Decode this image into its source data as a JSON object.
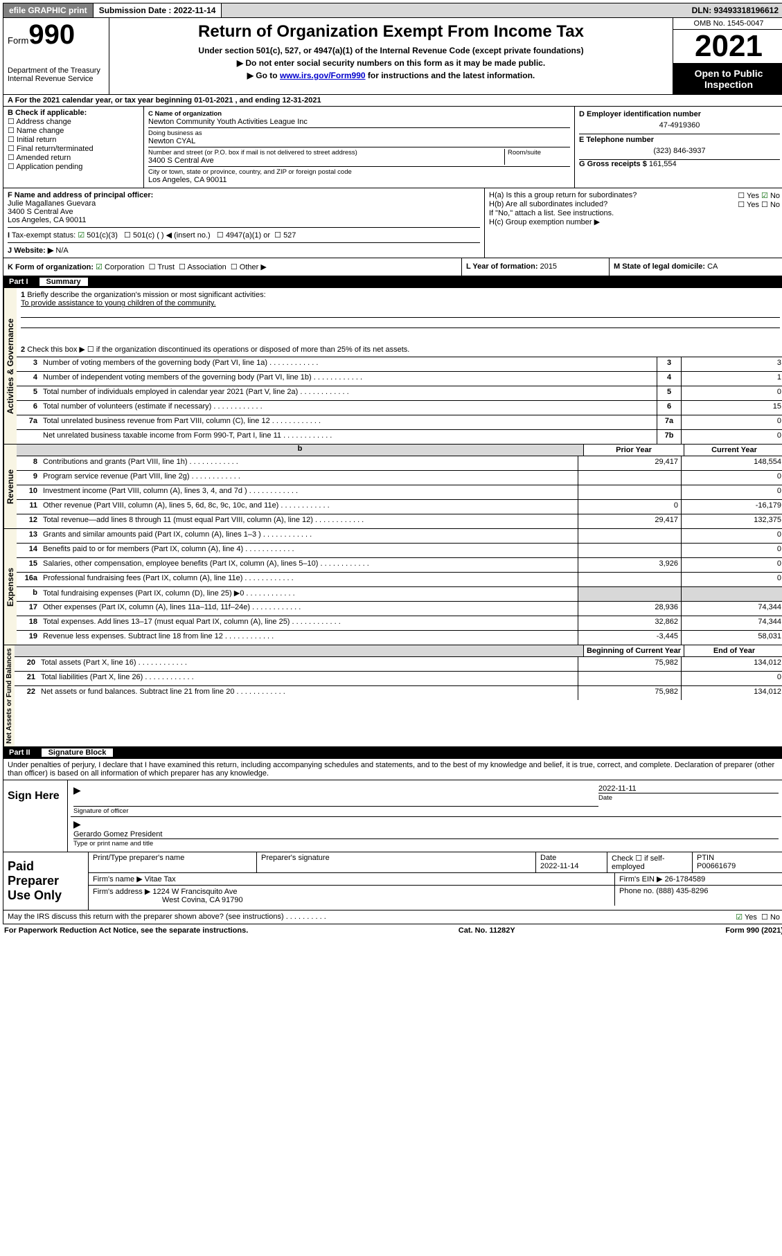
{
  "topbar": {
    "efile": "efile GRAPHIC print",
    "submission": "Submission Date : 2022-11-14",
    "dln": "DLN: 93493318196612"
  },
  "header": {
    "form_label": "Form",
    "form_number": "990",
    "dept": "Department of the Treasury",
    "irs": "Internal Revenue Service",
    "title": "Return of Organization Exempt From Income Tax",
    "subtitle": "Under section 501(c), 527, or 4947(a)(1) of the Internal Revenue Code (except private foundations)",
    "note1": "▶ Do not enter social security numbers on this form as it may be made public.",
    "note2_pre": "▶ Go to ",
    "note2_link": "www.irs.gov/Form990",
    "note2_post": " for instructions and the latest information.",
    "omb": "OMB No. 1545-0047",
    "year": "2021",
    "open": "Open to Public Inspection"
  },
  "rowA": "For the 2021 calendar year, or tax year beginning 01-01-2021   , and ending 12-31-2021",
  "colB": {
    "label": "B Check if applicable:",
    "items": [
      "Address change",
      "Name change",
      "Initial return",
      "Final return/terminated",
      "Amended return",
      "Application pending"
    ]
  },
  "colC": {
    "name_lbl": "C Name of organization",
    "name": "Newton Community Youth Activities League Inc",
    "dba_lbl": "Doing business as",
    "dba": "Newton CYAL",
    "addr_lbl": "Number and street (or P.O. box if mail is not delivered to street address)",
    "room_lbl": "Room/suite",
    "addr": "3400 S Central Ave",
    "city_lbl": "City or town, state or province, country, and ZIP or foreign postal code",
    "city": "Los Angeles, CA  90011"
  },
  "colD": {
    "ein_lbl": "D Employer identification number",
    "ein": "47-4919360",
    "tel_lbl": "E Telephone number",
    "tel": "(323) 846-3937",
    "gross_lbl": "G Gross receipts $",
    "gross": "161,554"
  },
  "rowF": {
    "f_lbl": "F Name and address of principal officer:",
    "f_name": "Julie Magallanes Guevara",
    "f_addr1": "3400 S Central Ave",
    "f_addr2": "Los Angeles, CA  90011",
    "i_lbl": "Tax-exempt status:",
    "i_501c3": "501(c)(3)",
    "i_501c": "501(c) (  ) ◀ (insert no.)",
    "i_4947": "4947(a)(1) or",
    "i_527": "527",
    "j_lbl": "Website: ▶",
    "j_val": "N/A",
    "ha_lbl": "H(a)  Is this a group return for subordinates?",
    "hb_lbl": "H(b)  Are all subordinates included?",
    "h_note": "If \"No,\" attach a list. See instructions.",
    "hc_lbl": "H(c)  Group exemption number ▶",
    "yes": "Yes",
    "no": "No"
  },
  "rowK": {
    "k_lbl": "K Form of organization:",
    "corp": "Corporation",
    "trust": "Trust",
    "assoc": "Association",
    "other": "Other ▶",
    "l_lbl": "L Year of formation:",
    "l_val": "2015",
    "m_lbl": "M State of legal domicile:",
    "m_val": "CA"
  },
  "part1": {
    "num": "Part I",
    "title": "Summary",
    "q1": "Briefly describe the organization's mission or most significant activities:",
    "q1a": "To provide assistance to young children of the community.",
    "q2": "Check this box ▶ ☐  if the organization discontinued its operations or disposed of more than 25% of its net assets.",
    "sideA": "Activities & Governance",
    "sideR": "Revenue",
    "sideE": "Expenses",
    "sideN": "Net Assets or Fund Balances",
    "prior": "Prior Year",
    "current": "Current Year",
    "begin": "Beginning of Current Year",
    "end": "End of Year",
    "lines_gov": [
      {
        "n": "3",
        "d": "Number of voting members of the governing body (Part VI, line 1a)",
        "b": "3",
        "v": "3"
      },
      {
        "n": "4",
        "d": "Number of independent voting members of the governing body (Part VI, line 1b)",
        "b": "4",
        "v": "1"
      },
      {
        "n": "5",
        "d": "Total number of individuals employed in calendar year 2021 (Part V, line 2a)",
        "b": "5",
        "v": "0"
      },
      {
        "n": "6",
        "d": "Total number of volunteers (estimate if necessary)",
        "b": "6",
        "v": "15"
      },
      {
        "n": "7a",
        "d": "Total unrelated business revenue from Part VIII, column (C), line 12",
        "b": "7a",
        "v": "0"
      },
      {
        "n": "",
        "d": "Net unrelated business taxable income from Form 990-T, Part I, line 11",
        "b": "7b",
        "v": "0"
      }
    ],
    "lines_rev": [
      {
        "n": "8",
        "d": "Contributions and grants (Part VIII, line 1h)",
        "p": "29,417",
        "c": "148,554"
      },
      {
        "n": "9",
        "d": "Program service revenue (Part VIII, line 2g)",
        "p": "",
        "c": "0"
      },
      {
        "n": "10",
        "d": "Investment income (Part VIII, column (A), lines 3, 4, and 7d )",
        "p": "",
        "c": "0"
      },
      {
        "n": "11",
        "d": "Other revenue (Part VIII, column (A), lines 5, 6d, 8c, 9c, 10c, and 11e)",
        "p": "0",
        "c": "-16,179"
      },
      {
        "n": "12",
        "d": "Total revenue—add lines 8 through 11 (must equal Part VIII, column (A), line 12)",
        "p": "29,417",
        "c": "132,375"
      }
    ],
    "lines_exp": [
      {
        "n": "13",
        "d": "Grants and similar amounts paid (Part IX, column (A), lines 1–3 )",
        "p": "",
        "c": "0"
      },
      {
        "n": "14",
        "d": "Benefits paid to or for members (Part IX, column (A), line 4)",
        "p": "",
        "c": "0"
      },
      {
        "n": "15",
        "d": "Salaries, other compensation, employee benefits (Part IX, column (A), lines 5–10)",
        "p": "3,926",
        "c": "0"
      },
      {
        "n": "16a",
        "d": "Professional fundraising fees (Part IX, column (A), line 11e)",
        "p": "",
        "c": "0"
      },
      {
        "n": "b",
        "d": "Total fundraising expenses (Part IX, column (D), line 25) ▶0",
        "p": "shade",
        "c": "shade"
      },
      {
        "n": "17",
        "d": "Other expenses (Part IX, column (A), lines 11a–11d, 11f–24e)",
        "p": "28,936",
        "c": "74,344"
      },
      {
        "n": "18",
        "d": "Total expenses. Add lines 13–17 (must equal Part IX, column (A), line 25)",
        "p": "32,862",
        "c": "74,344"
      },
      {
        "n": "19",
        "d": "Revenue less expenses. Subtract line 18 from line 12",
        "p": "-3,445",
        "c": "58,031"
      }
    ],
    "lines_net": [
      {
        "n": "20",
        "d": "Total assets (Part X, line 16)",
        "p": "75,982",
        "c": "134,012"
      },
      {
        "n": "21",
        "d": "Total liabilities (Part X, line 26)",
        "p": "",
        "c": "0"
      },
      {
        "n": "22",
        "d": "Net assets or fund balances. Subtract line 21 from line 20",
        "p": "75,982",
        "c": "134,012"
      }
    ]
  },
  "part2": {
    "num": "Part II",
    "title": "Signature Block",
    "penalty": "Under penalties of perjury, I declare that I have examined this return, including accompanying schedules and statements, and to the best of my knowledge and belief, it is true, correct, and complete. Declaration of preparer (other than officer) is based on all information of which preparer has any knowledge.",
    "sign_here": "Sign Here",
    "sig_officer": "Signature of officer",
    "sig_date": "2022-11-11",
    "date_lbl": "Date",
    "officer": "Gerardo Gomez  President",
    "type_name": "Type or print name and title",
    "paid": "Paid Preparer Use Only",
    "h_preparer": "Print/Type preparer's name",
    "h_sig": "Preparer's signature",
    "h_date": "Date",
    "h_date_v": "2022-11-14",
    "h_check": "Check ☐ if self-employed",
    "h_ptin": "PTIN",
    "ptin": "P00661679",
    "firm_name_lbl": "Firm's name    ▶",
    "firm_name": "Vitae Tax",
    "firm_ein_lbl": "Firm's EIN ▶",
    "firm_ein": "26-1784589",
    "firm_addr_lbl": "Firm's address ▶",
    "firm_addr1": "1224 W Francisquito Ave",
    "firm_addr2": "West Covina, CA  91790",
    "phone_lbl": "Phone no.",
    "phone": "(888) 435-8296",
    "may_irs": "May the IRS discuss this return with the preparer shown above? (see instructions)"
  },
  "footer": {
    "pra": "For Paperwork Reduction Act Notice, see the separate instructions.",
    "cat": "Cat. No. 11282Y",
    "form": "Form 990 (2021)"
  }
}
